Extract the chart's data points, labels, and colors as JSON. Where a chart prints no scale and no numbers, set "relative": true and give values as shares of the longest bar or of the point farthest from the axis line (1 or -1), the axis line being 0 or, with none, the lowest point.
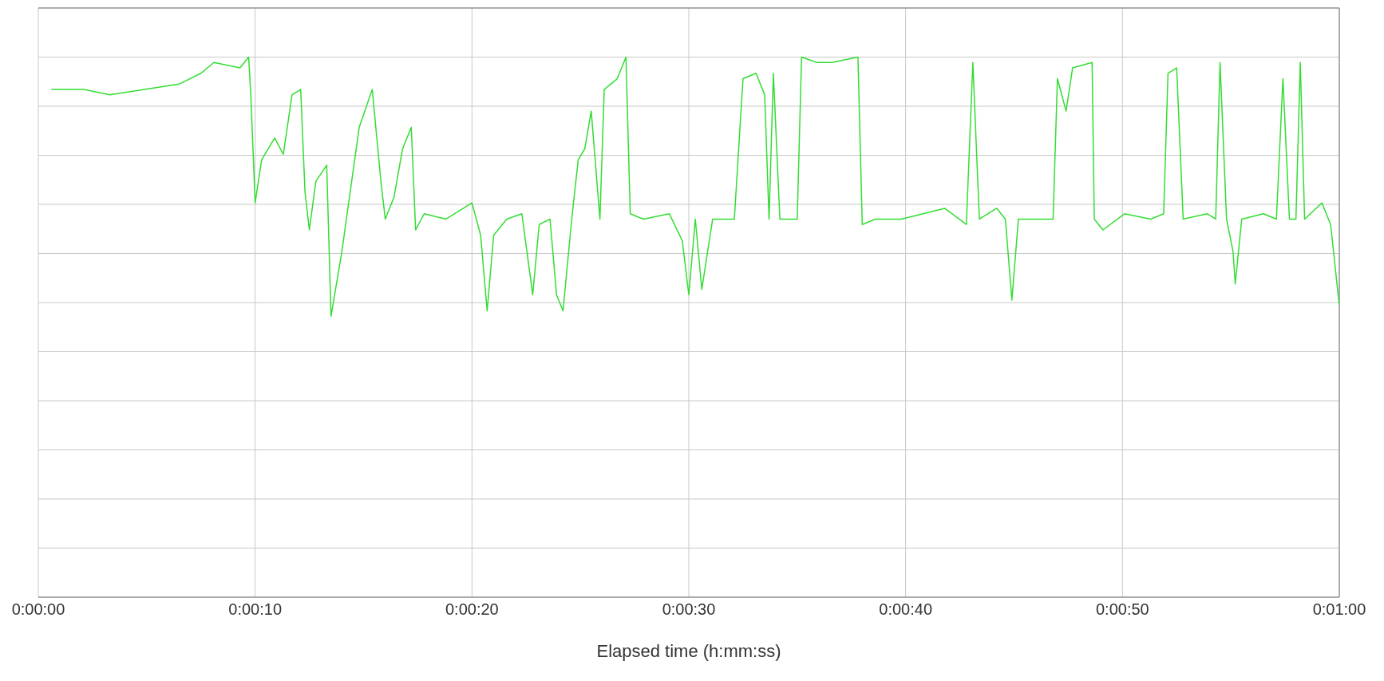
{
  "chart_data": {
    "type": "line",
    "xlabel": "Elapsed time (h:mm:ss)",
    "relative": true,
    "grid": true,
    "marker": "none",
    "color": "#33dd33",
    "xlim": [
      0,
      60
    ],
    "xticks": [
      {
        "value": 0,
        "label": "0:00:00"
      },
      {
        "value": 10,
        "label": "0:00:10"
      },
      {
        "value": 20,
        "label": "0:00:20"
      },
      {
        "value": 30,
        "label": "0:00:30"
      },
      {
        "value": 40,
        "label": "0:00:40"
      },
      {
        "value": 50,
        "label": "0:00:50"
      },
      {
        "value": 60,
        "label": "0:01:00"
      }
    ],
    "x": [
      0.6,
      2.1,
      3.3,
      4.9,
      6.5,
      7.5,
      8.1,
      9.3,
      9.7,
      9.8,
      10.0,
      10.3,
      10.9,
      11.3,
      11.7,
      12.1,
      12.3,
      12.5,
      12.8,
      13.3,
      13.5,
      14.0,
      14.8,
      15.4,
      15.8,
      16.0,
      16.4,
      16.8,
      17.2,
      17.4,
      17.8,
      18.8,
      20.0,
      20.4,
      20.7,
      21.0,
      21.6,
      22.3,
      22.8,
      23.1,
      23.6,
      23.9,
      24.2,
      24.6,
      24.9,
      25.2,
      25.5,
      25.9,
      26.1,
      26.4,
      26.7,
      27.1,
      27.3,
      27.9,
      29.1,
      29.7,
      30.0,
      30.3,
      30.6,
      31.1,
      32.1,
      32.5,
      33.1,
      33.5,
      33.7,
      33.9,
      34.2,
      34.7,
      35.0,
      35.2,
      35.9,
      36.6,
      37.8,
      38.0,
      38.6,
      39.8,
      41.8,
      42.8,
      43.1,
      43.4,
      44.2,
      44.6,
      44.9,
      45.2,
      46.2,
      46.8,
      47.0,
      47.4,
      47.7,
      48.6,
      48.7,
      49.1,
      50.1,
      51.3,
      51.9,
      52.1,
      52.5,
      52.8,
      53.9,
      54.3,
      54.5,
      54.8,
      55.1,
      55.2,
      55.5,
      56.5,
      57.1,
      57.4,
      57.7,
      58.0,
      58.2,
      58.4,
      59.2,
      59.6,
      60.0
    ],
    "values": [
      0.94,
      0.94,
      0.93,
      0.94,
      0.95,
      0.97,
      0.99,
      0.98,
      1.0,
      0.93,
      0.73,
      0.81,
      0.85,
      0.82,
      0.93,
      0.94,
      0.75,
      0.68,
      0.77,
      0.8,
      0.52,
      0.64,
      0.87,
      0.94,
      0.77,
      0.7,
      0.74,
      0.83,
      0.87,
      0.68,
      0.71,
      0.7,
      0.73,
      0.67,
      0.53,
      0.67,
      0.7,
      0.71,
      0.56,
      0.69,
      0.7,
      0.56,
      0.53,
      0.7,
      0.81,
      0.83,
      0.9,
      0.7,
      0.94,
      0.95,
      0.96,
      1.0,
      0.71,
      0.7,
      0.71,
      0.66,
      0.56,
      0.7,
      0.57,
      0.7,
      0.7,
      0.96,
      0.97,
      0.93,
      0.7,
      0.97,
      0.7,
      0.7,
      0.7,
      1.0,
      0.99,
      0.99,
      1.0,
      0.69,
      0.7,
      0.7,
      0.72,
      0.69,
      0.99,
      0.7,
      0.72,
      0.7,
      0.55,
      0.7,
      0.7,
      0.7,
      0.96,
      0.9,
      0.98,
      0.99,
      0.7,
      0.68,
      0.71,
      0.7,
      0.71,
      0.97,
      0.98,
      0.7,
      0.71,
      0.7,
      0.99,
      0.7,
      0.64,
      0.58,
      0.7,
      0.71,
      0.7,
      0.96,
      0.7,
      0.7,
      0.99,
      0.7,
      0.73,
      0.69,
      0.54
    ]
  }
}
